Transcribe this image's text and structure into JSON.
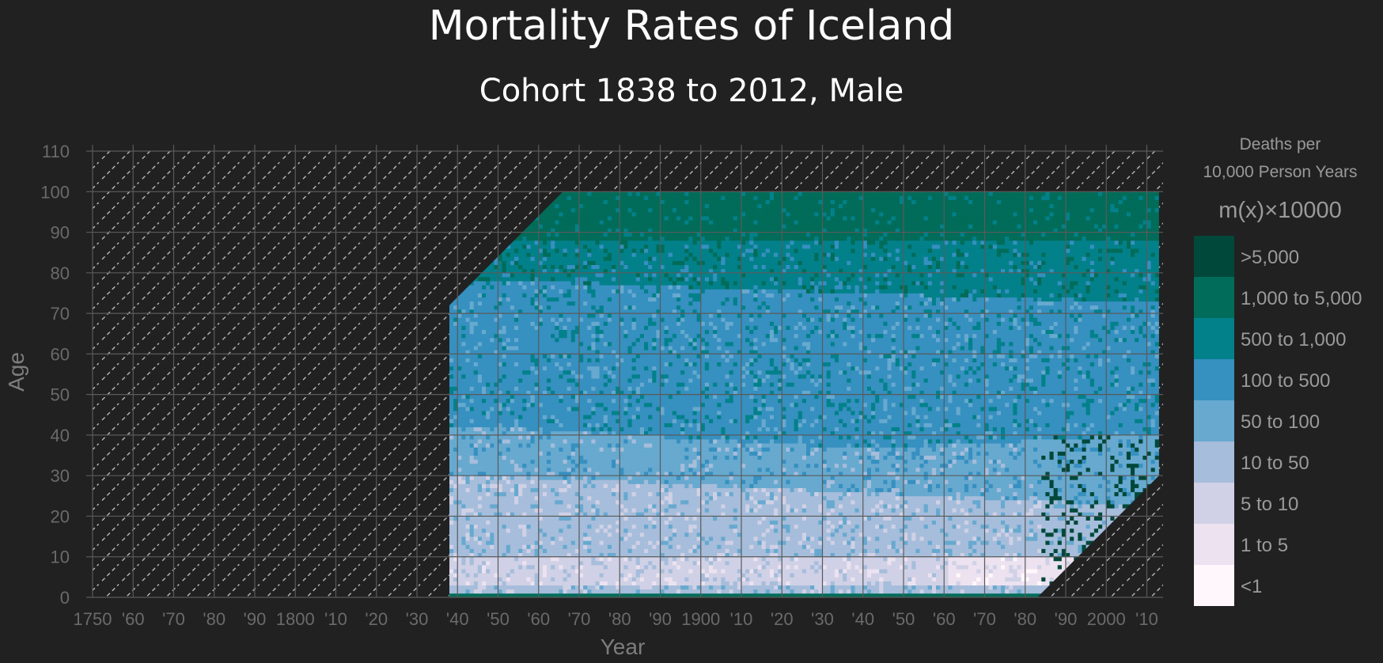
{
  "chart_data": {
    "type": "heatmap",
    "title": "Mortality Rates of Iceland",
    "subtitle": "Cohort 1838 to 2012, Male",
    "xlabel": "Year",
    "ylabel": "Age",
    "xlim": [
      1750,
      2014
    ],
    "ylim": [
      0,
      110
    ],
    "x_ticks": [
      1750,
      1760,
      1770,
      1780,
      1790,
      1800,
      1810,
      1820,
      1830,
      1840,
      1850,
      1860,
      1870,
      1880,
      1890,
      1900,
      1910,
      1920,
      1930,
      1940,
      1950,
      1960,
      1970,
      1980,
      1990,
      2000,
      2010
    ],
    "x_tick_labels": [
      "1750",
      "'60",
      "'70",
      "'80",
      "'90",
      "1800",
      "'10",
      "'20",
      "'30",
      "'40",
      "'50",
      "'60",
      "'70",
      "'80",
      "'90",
      "1900",
      "'10",
      "'20",
      "'30",
      "'40",
      "'50",
      "'60",
      "'70",
      "'80",
      "'90",
      "2000",
      "'10"
    ],
    "y_ticks": [
      0,
      10,
      20,
      30,
      40,
      50,
      60,
      70,
      80,
      90,
      100,
      110
    ],
    "y_tick_labels": [
      "0",
      "10",
      "20",
      "30",
      "40",
      "50",
      "60",
      "70",
      "80",
      "90",
      "100",
      "110"
    ],
    "grid": true,
    "missing_data_pattern": "diagonal dashed hatching",
    "legend": {
      "position": "right",
      "title_line1": "Deaths per",
      "title_line2": "10,000 Person Years",
      "formula": "m(x)×10000",
      "categories": [
        {
          "label": ">5,000",
          "color": "#00483a"
        },
        {
          "label": "1,000 to 5,000",
          "color": "#016c59"
        },
        {
          "label": "500 to 1,000",
          "color": "#02818a"
        },
        {
          "label": "100 to 500",
          "color": "#3690c0"
        },
        {
          "label": "50 to 100",
          "color": "#67a9cf"
        },
        {
          "label": "10 to 50",
          "color": "#a6bddb"
        },
        {
          "label": "5 to 10",
          "color": "#d0d1e6"
        },
        {
          "label": "1 to 5",
          "color": "#ece2f0"
        },
        {
          "label": "<1",
          "color": "#fff7fb"
        }
      ]
    },
    "observed_region": {
      "cohort_start": 1838,
      "cohort_end": 2012,
      "period_start": 1838,
      "period_end": 2013,
      "max_age": 100
    },
    "category_age_bands": [
      {
        "category": "1,000 to 5,000",
        "age_from": 85,
        "age_to": 100
      },
      {
        "category": "500 to 1,000",
        "age_from": 72,
        "age_to": 85
      },
      {
        "category": "100 to 500",
        "age_from": 40,
        "age_to": 72
      },
      {
        "category": "50 to 100",
        "age_from": 30,
        "age_to": 40
      },
      {
        "category": "10 to 50",
        "age_from": 10,
        "age_to": 30
      },
      {
        "category": "5 to 10",
        "age_from": 3,
        "age_to": 10
      },
      {
        "category": "1,000 to 5,000",
        "age_from": 0,
        "age_to": 1
      }
    ]
  },
  "colors": {
    "background": "#212121",
    "grid": "#5a5a5a",
    "hatch": "#bdbdbd",
    "title": "#ffffff",
    "tick": "#6a6a6a"
  }
}
